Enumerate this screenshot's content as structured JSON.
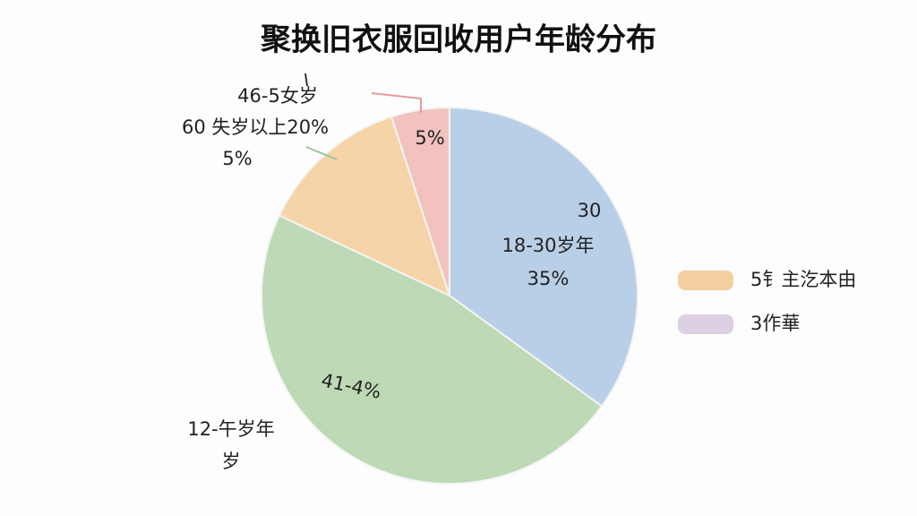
{
  "chart_data": {
    "type": "pie",
    "title": "聚换旧衣服回收用户年龄分布",
    "values": [
      35,
      47,
      13,
      5
    ],
    "colors": [
      "#b9cfe8",
      "#bdd9b5",
      "#f5d4a8",
      "#f2c2bf"
    ],
    "annotations": [
      "18-30岁年",
      "35%",
      "41-4%",
      "12-午岁年",
      "岁",
      "46-5女岁",
      "60 失岁以上20%",
      "5%",
      "5%",
      "30"
    ],
    "legend": [
      {
        "name": "5钅主汔本由",
        "color": "#f3cfa0"
      },
      {
        "name": "3作華",
        "color": "#ddd0e3"
      }
    ]
  }
}
